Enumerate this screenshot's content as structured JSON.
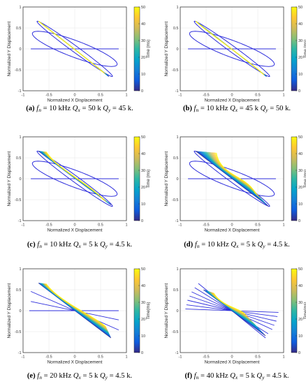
{
  "colors": {
    "line": "#2e2edc",
    "parula": [
      "#352a87",
      "#0f5cdd",
      "#1481d6",
      "#06a4ca",
      "#2eb7a4",
      "#87bf77",
      "#d1bb59",
      "#fec832",
      "#f9fb0e"
    ]
  },
  "common": {
    "xlabel": "Normalized X Displacement",
    "ylabel": "Normalized Y Displacement",
    "colorbar_label": "Time (ms)",
    "colorbar_label_alt": "Time(ms)",
    "x_ticks": [
      "-1",
      "-0.5",
      "0",
      "0.5",
      "1"
    ],
    "y_ticks": [
      "1",
      "0.5",
      "0",
      "-0.5",
      "-1"
    ],
    "cb_ticks": [
      "50",
      "40",
      "30",
      "20",
      "10",
      "0"
    ]
  },
  "captions": [
    {
      "letter": "(a)",
      "fn": "10 kHz",
      "qx": "50 k",
      "qy": "45 k."
    },
    {
      "letter": "(b)",
      "fn": "10 kHz",
      "qx": "45 k",
      "qy": "50 k."
    },
    {
      "letter": "(c)",
      "fn": "10 kHz",
      "qx": "5 k",
      "qy": "4.5 k."
    },
    {
      "letter": "(d)",
      "fn": "10 kHz",
      "qx": "5 k",
      "qy": "4.5 k."
    },
    {
      "letter": "(e)",
      "fn": "20 kHz",
      "qx": "5 k",
      "qy": "4.5 k."
    },
    {
      "letter": "(f)",
      "fn": "40 kHz",
      "qx": "5 k",
      "qy": "4.5 k."
    }
  ],
  "chart_data": [
    {
      "type": "line",
      "panel": "a",
      "xlabel": "Normalized X Displacement",
      "ylabel": "Normalized Y Displacement",
      "xlim": [
        -1,
        1
      ],
      "ylim": [
        -1,
        1
      ],
      "colorbar": {
        "label": "Time (ms)",
        "range": [
          0,
          50
        ]
      },
      "grid": true,
      "static_loops": [
        {
          "x_amplitude": 0.82,
          "y_amplitude": 0.42,
          "phase_deg": 30
        },
        {
          "x_amplitude": 0.85,
          "y_amplitude": 0.0,
          "phase_deg": 0
        },
        {
          "x_amplitude": 0.73,
          "y_amplitude": 0.66,
          "phase_deg": 8
        }
      ],
      "time_traces": [
        {
          "t0": [
            -0.7,
            0.66
          ],
          "t1": [
            -0.7,
            0.66
          ],
          "mid_offset": -0.01,
          "tail": [
            [
              0.55,
              -0.56
            ],
            [
              0.66,
              -0.66
            ]
          ]
        }
      ]
    },
    {
      "type": "line",
      "panel": "b",
      "xlabel": "Normalized X Displacement",
      "ylabel": "Normalized Y Displacement",
      "xlim": [
        -1,
        1
      ],
      "ylim": [
        -1,
        1
      ],
      "colorbar": {
        "label": "Time (ms)",
        "range": [
          0,
          50
        ]
      },
      "grid": true,
      "static_loops": [
        {
          "x_amplitude": 0.82,
          "y_amplitude": 0.42,
          "phase_deg": 30
        },
        {
          "x_amplitude": 0.85,
          "y_amplitude": 0.0,
          "phase_deg": 0
        },
        {
          "x_amplitude": 0.73,
          "y_amplitude": 0.66,
          "phase_deg": 8
        }
      ],
      "time_traces": [
        {
          "t0": [
            -0.7,
            0.66
          ],
          "t1": [
            -0.7,
            0.66
          ],
          "mid_offset": -0.04,
          "tail": [
            [
              0.6,
              -0.6
            ],
            [
              0.67,
              -0.66
            ]
          ]
        }
      ]
    },
    {
      "type": "line",
      "panel": "c",
      "xlabel": "Normalized X Displacement",
      "ylabel": "Normalized Y Displacement",
      "xlim": [
        -1,
        1
      ],
      "ylim": [
        -1,
        1
      ],
      "colorbar": {
        "label": "Time (ms)",
        "range": [
          0,
          50
        ]
      },
      "grid": true,
      "static_loops": [
        {
          "x_amplitude": 0.82,
          "y_amplitude": 0.42,
          "phase_deg": 30
        },
        {
          "x_amplitude": 0.85,
          "y_amplitude": 0.0,
          "phase_deg": 0
        },
        {
          "x_amplitude": 0.73,
          "y_amplitude": 0.66,
          "phase_deg": 8
        }
      ],
      "time_traces": [
        {
          "t0": [
            -0.7,
            0.66
          ],
          "t1": [
            -0.55,
            0.64
          ],
          "mid_offset": -0.12,
          "tail": [
            [
              0.55,
              -0.5
            ],
            [
              0.7,
              -0.62
            ]
          ]
        }
      ]
    },
    {
      "type": "line",
      "panel": "d",
      "xlabel": "Normalized X Displacement",
      "ylabel": "Normalized Y Displacement",
      "xlim": [
        -1,
        1
      ],
      "ylim": [
        -1,
        1
      ],
      "colorbar": {
        "label": "Time (ms)",
        "range": [
          0,
          50
        ]
      },
      "grid": true,
      "static_loops": [
        {
          "x_amplitude": 0.82,
          "y_amplitude": 0.42,
          "phase_deg": 30
        },
        {
          "x_amplitude": 0.85,
          "y_amplitude": 0.0,
          "phase_deg": 0
        },
        {
          "x_amplitude": 0.73,
          "y_amplitude": 0.66,
          "phase_deg": 8
        }
      ],
      "time_traces": [
        {
          "t0": [
            -0.7,
            0.66
          ],
          "t1": [
            -0.3,
            0.62
          ],
          "mid_offset": -0.25,
          "tail": [
            [
              0.45,
              -0.35
            ],
            [
              0.7,
              -0.65
            ]
          ]
        }
      ]
    },
    {
      "type": "line",
      "panel": "e",
      "xlabel": "Normalized X Displacement",
      "ylabel": "Normalized Y Displacement",
      "xlim": [
        -1,
        1
      ],
      "ylim": [
        -1,
        1
      ],
      "colorbar": {
        "label": "Time(ms)",
        "range": [
          0,
          50
        ]
      },
      "grid": true,
      "static_lines": [
        {
          "from": [
            -0.85,
            0.46
          ],
          "to": [
            0.85,
            -0.46
          ]
        },
        {
          "from": [
            -0.85,
            0.22
          ],
          "to": [
            0.85,
            -0.22
          ]
        },
        {
          "from": [
            -0.88,
            0.0
          ],
          "to": [
            0.85,
            0.0
          ]
        }
      ],
      "time_traces": [
        {
          "t0": [
            -0.7,
            0.66
          ],
          "t1": [
            -0.55,
            0.64
          ],
          "mid_offset": -0.1,
          "tail": [
            [
              0.6,
              -0.38
            ],
            [
              0.7,
              -0.65
            ]
          ]
        }
      ]
    },
    {
      "type": "line",
      "panel": "f",
      "xlabel": "Normalized X Displacement",
      "ylabel": "Normalized Y Displacement",
      "xlim": [
        -1,
        1
      ],
      "ylim": [
        -1,
        1
      ],
      "colorbar": {
        "label": "Time(ms)",
        "range": [
          0,
          50
        ]
      },
      "grid": true,
      "static_lines": [
        {
          "from": [
            -0.65,
            0.65
          ],
          "to": [
            0.65,
            -0.65
          ]
        },
        {
          "from": [
            -0.72,
            0.55
          ],
          "to": [
            0.7,
            -0.55
          ]
        },
        {
          "from": [
            -0.78,
            0.45
          ],
          "to": [
            0.78,
            -0.45
          ]
        },
        {
          "from": [
            -0.82,
            0.35
          ],
          "to": [
            0.82,
            -0.35
          ]
        },
        {
          "from": [
            -0.86,
            0.25
          ],
          "to": [
            0.86,
            -0.25
          ]
        },
        {
          "from": [
            -0.88,
            0.14
          ],
          "to": [
            0.88,
            -0.14
          ]
        },
        {
          "from": [
            -0.9,
            0.04
          ],
          "to": [
            0.9,
            -0.04
          ]
        }
      ],
      "time_traces": [
        {
          "t0": [
            -0.55,
            0.5
          ],
          "t1": [
            -0.35,
            0.42
          ],
          "mid_offset": -0.1,
          "tail": [
            [
              0.25,
              -0.08
            ],
            [
              0.65,
              -0.6
            ]
          ]
        }
      ]
    }
  ]
}
